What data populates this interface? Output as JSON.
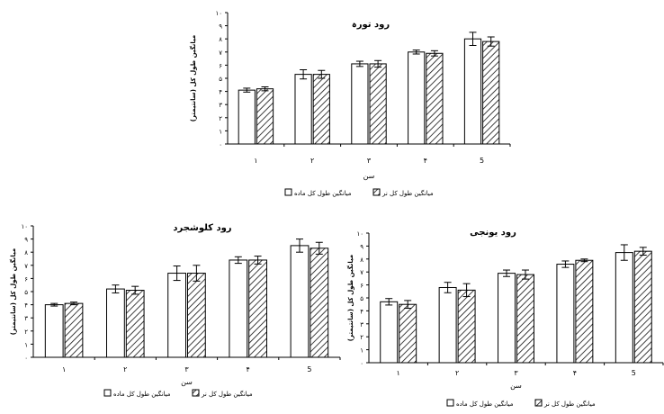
{
  "chart_data": [
    {
      "type": "bar",
      "title": "رود تورہ",
      "xlabel": "سن",
      "ylabel": "میانگین طول کل (سانتیمتر)",
      "categories": [
        "۱",
        "۲",
        "۳",
        "۴",
        "5"
      ],
      "ylim": [
        0,
        10
      ],
      "yticks": [
        "۰",
        "۱",
        "۲",
        "۳",
        "۴",
        "۵",
        "۶",
        "۷",
        "۸",
        "۹",
        "۱۰"
      ],
      "series": [
        {
          "name": "میانگین طول کل ماده",
          "values": [
            4.1,
            5.3,
            6.1,
            7.0,
            8.0
          ],
          "errors": [
            0.15,
            0.35,
            0.2,
            0.15,
            0.5
          ],
          "fill": "#ffffff"
        },
        {
          "name": "میانگین طول کل نر",
          "values": [
            4.2,
            5.3,
            6.1,
            6.9,
            7.8
          ],
          "errors": [
            0.15,
            0.3,
            0.25,
            0.2,
            0.35
          ],
          "fill": "hatch"
        }
      ],
      "grid": false,
      "legend": "bottom"
    },
    {
      "type": "bar",
      "title": "رود کلوشجرد",
      "xlabel": "سن",
      "ylabel": "میانگین طول کل (سانتیمتر)",
      "categories": [
        "۱",
        "۲",
        "۳",
        "۴",
        "5"
      ],
      "ylim": [
        0,
        10
      ],
      "yticks": [
        "۰",
        "۱",
        "۲",
        "۳",
        "۴",
        "۵",
        "۶",
        "۷",
        "۸",
        "۹",
        "۱۰"
      ],
      "series": [
        {
          "name": "میانگین طول کل ماده",
          "values": [
            4.0,
            5.2,
            6.4,
            7.4,
            8.5
          ],
          "errors": [
            0.1,
            0.3,
            0.55,
            0.25,
            0.5
          ],
          "fill": "#ffffff"
        },
        {
          "name": "میانگین طول کل نر",
          "values": [
            4.1,
            5.1,
            6.4,
            7.4,
            8.3
          ],
          "errors": [
            0.1,
            0.3,
            0.6,
            0.3,
            0.45
          ],
          "fill": "hatch"
        }
      ],
      "grid": false,
      "legend": "bottom"
    },
    {
      "type": "bar",
      "title": "رود یونجی",
      "xlabel": "سن",
      "ylabel": "میانگین طول کل (سانتیمتر)",
      "categories": [
        "۱",
        "۲",
        "۳",
        "۴",
        "5"
      ],
      "ylim": [
        0,
        10
      ],
      "yticks": [
        "۰",
        "۱",
        "۲",
        "۳",
        "۴",
        "۵",
        "۶",
        "۷",
        "۸",
        "۹",
        "۱۰"
      ],
      "series": [
        {
          "name": "میانگین طول کل ماده",
          "values": [
            4.7,
            5.8,
            6.9,
            7.6,
            8.5
          ],
          "errors": [
            0.25,
            0.4,
            0.25,
            0.25,
            0.6
          ],
          "fill": "#ffffff"
        },
        {
          "name": "میانگین طول کل نر",
          "values": [
            4.5,
            5.6,
            6.8,
            7.9,
            8.6
          ],
          "errors": [
            0.3,
            0.5,
            0.35,
            0.1,
            0.3
          ],
          "fill": "hatch"
        }
      ],
      "grid": false,
      "legend": "bottom"
    }
  ]
}
